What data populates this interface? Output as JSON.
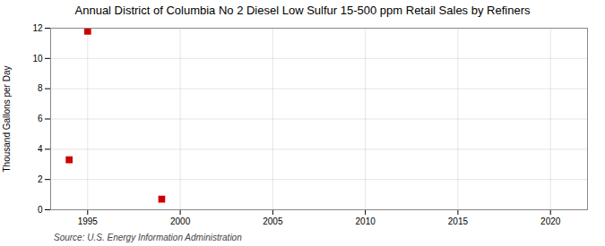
{
  "chart_data": {
    "type": "scatter",
    "title": "Annual District of Columbia No 2 Diesel Low Sulfur 15-500 ppm Retail Sales by Refiners",
    "ylabel": "Thousand Gallons per Day",
    "annotations": [
      "Source: U.S. Energy Information Administration"
    ],
    "x": [
      1994,
      1995,
      1999
    ],
    "values": [
      3.3,
      11.8,
      0.7
    ],
    "color": "#cc0000",
    "marker": "square",
    "xlim": [
      1993,
      2022
    ],
    "ylim": [
      0,
      12
    ],
    "xticks": [
      1995,
      2000,
      2005,
      2010,
      2015,
      2020
    ],
    "yticks": [
      0,
      2,
      4,
      6,
      8,
      10,
      12
    ],
    "grid": true
  }
}
